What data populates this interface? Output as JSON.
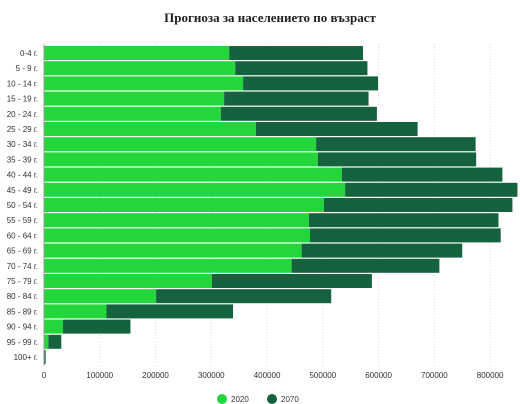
{
  "chart_data": {
    "type": "bar",
    "orientation": "horizontal",
    "stacked": true,
    "title": "Прогноза за населението по възраст",
    "categories": [
      "0-4 г.",
      "5 - 9 г.",
      "10 - 14 г.",
      "15 - 19 г.",
      "20 - 24 г.",
      "25 - 29 г.",
      "30 - 34 г.",
      "35 - 39 г.",
      "40 - 44 г.",
      "45 - 49 г.",
      "50 - 54 г.",
      "55 - 59 г.",
      "60 - 64 г.",
      "65 - 69 г.",
      "70 - 74 г.",
      "75 - 79 г.",
      "80 - 84 г.",
      "85 - 89 г.",
      "90 - 94 г.",
      "95 - 99 г.",
      "100+ г."
    ],
    "series": [
      {
        "name": "2020",
        "color": "#22d63c",
        "values": [
          332000,
          343000,
          357000,
          323000,
          317000,
          380000,
          488000,
          491000,
          534000,
          540000,
          502000,
          475000,
          477000,
          462000,
          444000,
          301000,
          201000,
          112000,
          34000,
          8000,
          1000
        ]
      },
      {
        "name": "2070",
        "color": "#14623e",
        "values": [
          240000,
          237000,
          242000,
          259000,
          280000,
          290000,
          286000,
          284000,
          288000,
          309000,
          338000,
          340000,
          342000,
          288000,
          265000,
          287000,
          314000,
          227000,
          121000,
          23000,
          2000
        ]
      }
    ],
    "xlim": [
      0,
      850000
    ],
    "xticks": [
      "0",
      "100000",
      "200000",
      "300000",
      "400000",
      "500000",
      "600000",
      "700000",
      "800000"
    ],
    "grid": true,
    "legend": "bottom-center"
  }
}
